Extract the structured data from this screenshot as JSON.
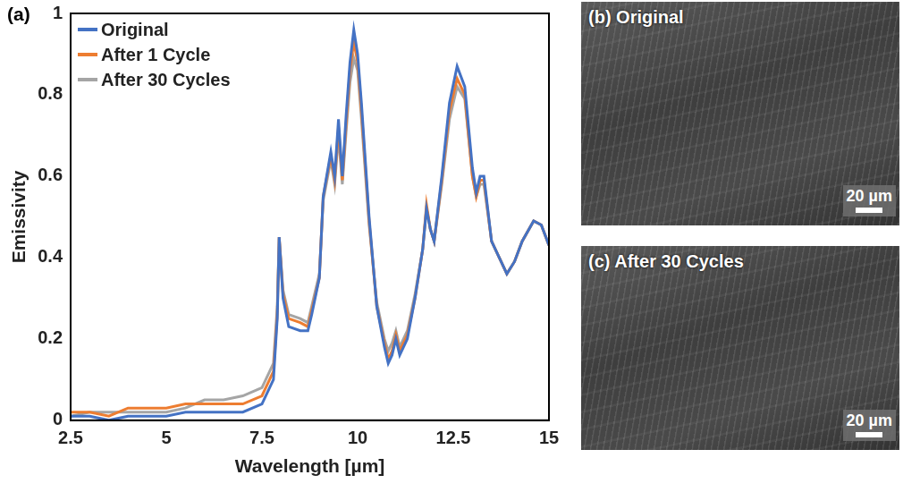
{
  "chart_data": {
    "type": "line",
    "panel": "(a)",
    "x_label": "Wavelength [µm]",
    "y_label": "Emissivity",
    "x": [
      2.5,
      3,
      3.5,
      4,
      4.5,
      5,
      5.5,
      6,
      6.5,
      7,
      7.5,
      7.8,
      7.9,
      7.95,
      8.05,
      8.2,
      8.5,
      8.7,
      8.8,
      9.0,
      9.1,
      9.3,
      9.4,
      9.5,
      9.6,
      9.7,
      9.8,
      9.9,
      10.0,
      10.1,
      10.3,
      10.5,
      10.7,
      10.8,
      10.9,
      11.0,
      11.1,
      11.3,
      11.5,
      11.7,
      11.8,
      11.9,
      12.0,
      12.2,
      12.4,
      12.6,
      12.8,
      13.0,
      13.1,
      13.2,
      13.3,
      13.5,
      13.7,
      13.9,
      14.1,
      14.3,
      14.6,
      14.8,
      15
    ],
    "series": [
      {
        "name": "Original",
        "color": "#4472c4",
        "marker": "none",
        "line_style": "solid",
        "values": [
          0.01,
          0.01,
          0.0,
          0.01,
          0.01,
          0.01,
          0.02,
          0.02,
          0.02,
          0.02,
          0.04,
          0.1,
          0.25,
          0.45,
          0.3,
          0.23,
          0.22,
          0.22,
          0.26,
          0.35,
          0.55,
          0.66,
          0.6,
          0.74,
          0.6,
          0.75,
          0.88,
          0.96,
          0.9,
          0.78,
          0.5,
          0.28,
          0.18,
          0.14,
          0.16,
          0.2,
          0.16,
          0.2,
          0.3,
          0.42,
          0.52,
          0.47,
          0.44,
          0.6,
          0.78,
          0.87,
          0.82,
          0.62,
          0.56,
          0.6,
          0.6,
          0.44,
          0.4,
          0.36,
          0.39,
          0.44,
          0.49,
          0.48,
          0.43
        ]
      },
      {
        "name": "After 1 Cycle",
        "color": "#ed7d31",
        "marker": "none",
        "line_style": "solid",
        "values": [
          0.02,
          0.02,
          0.01,
          0.03,
          0.03,
          0.03,
          0.04,
          0.04,
          0.04,
          0.04,
          0.06,
          0.12,
          0.26,
          0.45,
          0.31,
          0.25,
          0.24,
          0.23,
          0.27,
          0.35,
          0.55,
          0.65,
          0.59,
          0.72,
          0.59,
          0.73,
          0.86,
          0.93,
          0.88,
          0.76,
          0.49,
          0.28,
          0.19,
          0.15,
          0.17,
          0.21,
          0.17,
          0.21,
          0.3,
          0.42,
          0.53,
          0.47,
          0.44,
          0.59,
          0.76,
          0.84,
          0.8,
          0.6,
          0.55,
          0.59,
          0.59,
          0.44,
          0.4,
          0.36,
          0.39,
          0.44,
          0.49,
          0.48,
          0.43
        ]
      },
      {
        "name": "After 30 Cycles",
        "color": "#a5a5a5",
        "marker": "none",
        "line_style": "solid",
        "values": [
          0.01,
          0.02,
          0.02,
          0.02,
          0.02,
          0.02,
          0.03,
          0.05,
          0.05,
          0.06,
          0.08,
          0.14,
          0.28,
          0.45,
          0.32,
          0.26,
          0.25,
          0.24,
          0.28,
          0.36,
          0.54,
          0.64,
          0.58,
          0.7,
          0.58,
          0.71,
          0.83,
          0.89,
          0.86,
          0.74,
          0.48,
          0.29,
          0.2,
          0.17,
          0.19,
          0.22,
          0.18,
          0.22,
          0.31,
          0.42,
          0.52,
          0.47,
          0.44,
          0.58,
          0.74,
          0.82,
          0.79,
          0.6,
          0.55,
          0.58,
          0.58,
          0.44,
          0.4,
          0.36,
          0.39,
          0.44,
          0.49,
          0.48,
          0.43
        ]
      }
    ],
    "xlim": [
      2.5,
      15
    ],
    "xticks": [
      2.5,
      5,
      7.5,
      10,
      12.5,
      15
    ],
    "ylim": [
      0,
      1
    ],
    "yticks": [
      0,
      0.2,
      0.4,
      0.6,
      0.8,
      1
    ],
    "grid": false,
    "legend": "top-left"
  },
  "images": [
    {
      "title": "(b) Original",
      "scale_bar": "20 µm"
    },
    {
      "title": "(c) After 30 Cycles",
      "scale_bar": "20 µm"
    }
  ]
}
